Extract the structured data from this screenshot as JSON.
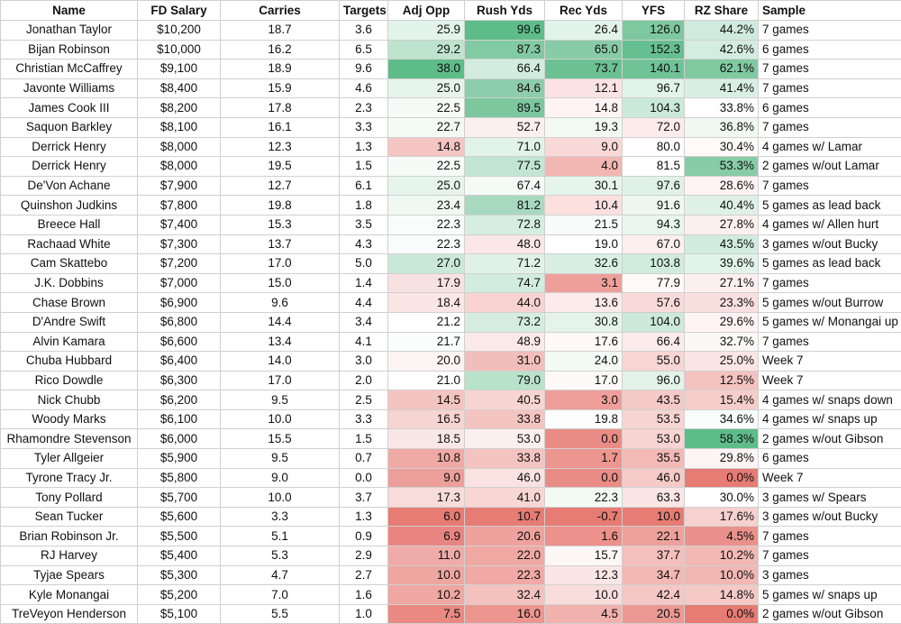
{
  "headers": [
    "Name",
    "FD Salary",
    "Carries",
    "Targets",
    "Adj Opp",
    "Rush Yds",
    "Rec Yds",
    "YFS",
    "RZ Share",
    "Sample"
  ],
  "rows": [
    {
      "name": "Jonathan Taylor",
      "salary": "$10,200",
      "carries": "18.7",
      "targets": "3.6",
      "adj_opp": "25.9",
      "rush_yds": "99.6",
      "rec_yds": "26.4",
      "yfs": "126.0",
      "rz_share": "44.2%",
      "sample": "7 games",
      "colors": [
        "#e2f3ea",
        "#5ebc89",
        "#e2f3ea",
        "#7ec89f",
        "#cfebdd"
      ]
    },
    {
      "name": "Bijan Robinson",
      "salary": "$10,000",
      "carries": "16.2",
      "targets": "6.5",
      "adj_opp": "29.2",
      "rush_yds": "87.3",
      "rec_yds": "65.0",
      "yfs": "152.3",
      "rz_share": "42.6%",
      "sample": "6 games",
      "colors": [
        "#bee4ce",
        "#82caa3",
        "#87cca6",
        "#66bf90",
        "#d4ede1"
      ]
    },
    {
      "name": "Christian McCaffrey",
      "salary": "$9,100",
      "carries": "18.9",
      "targets": "9.6",
      "adj_opp": "38.0",
      "rush_yds": "66.4",
      "rec_yds": "73.7",
      "yfs": "140.1",
      "rz_share": "62.1%",
      "sample": "7 games",
      "colors": [
        "#5ebc89",
        "#d3ece0",
        "#6cc194",
        "#70c397",
        "#80c9a1"
      ]
    },
    {
      "name": "Javonte Williams",
      "salary": "$8,400",
      "carries": "15.9",
      "targets": "4.6",
      "adj_opp": "25.0",
      "rush_yds": "84.6",
      "rec_yds": "12.1",
      "yfs": "96.7",
      "rz_share": "41.4%",
      "sample": "7 games",
      "colors": [
        "#e6f5ec",
        "#8dcdab",
        "#fae3e2",
        "#e2f3ea",
        "#d9efe4"
      ]
    },
    {
      "name": "James Cook III",
      "salary": "$8,200",
      "carries": "17.8",
      "targets": "2.3",
      "adj_opp": "22.5",
      "rush_yds": "89.5",
      "rec_yds": "14.8",
      "yfs": "104.3",
      "rz_share": "33.8%",
      "sample": "6 games",
      "colors": [
        "#f6fbf8",
        "#7dc79f",
        "#fdf4f3",
        "#cbe9d9",
        "#fefefe"
      ]
    },
    {
      "name": "Saquon Barkley",
      "salary": "$8,100",
      "carries": "16.1",
      "targets": "3.3",
      "adj_opp": "22.7",
      "rush_yds": "52.7",
      "rec_yds": "19.3",
      "yfs": "72.0",
      "rz_share": "36.8%",
      "sample": "7 games",
      "colors": [
        "#f4faf6",
        "#fcf0ef",
        "#f2f9f5",
        "#fbeceb",
        "#f0f8f3"
      ]
    },
    {
      "name": "Derrick Henry",
      "salary": "$8,000",
      "carries": "12.3",
      "targets": "1.3",
      "adj_opp": "14.8",
      "rush_yds": "71.0",
      "rec_yds": "9.0",
      "yfs": "80.0",
      "rz_share": "30.4%",
      "sample": "4 games w/ Lamar",
      "colors": [
        "#f4c5c2",
        "#e2f3ea",
        "#f9d9d7",
        "#fffdfd",
        "#fffafa"
      ]
    },
    {
      "name": "Derrick Henry",
      "salary": "$8,000",
      "carries": "19.5",
      "targets": "1.5",
      "adj_opp": "22.5",
      "rush_yds": "77.5",
      "rec_yds": "4.0",
      "yfs": "81.5",
      "rz_share": "53.3%",
      "sample": "2 games w/out Lamar",
      "colors": [
        "#f6fbf8",
        "#c3e6d2",
        "#f2b7b3",
        "#fffefe",
        "#87cca6"
      ]
    },
    {
      "name": "De'Von Achane",
      "salary": "$7,900",
      "carries": "12.7",
      "targets": "6.1",
      "adj_opp": "25.0",
      "rush_yds": "67.4",
      "rec_yds": "30.1",
      "yfs": "97.6",
      "rz_share": "28.6%",
      "sample": "7 games",
      "colors": [
        "#e6f5ec",
        "#f4faf6",
        "#e6f5ec",
        "#e0f2e8",
        "#fdf3f3"
      ]
    },
    {
      "name": "Quinshon Judkins",
      "salary": "$7,800",
      "carries": "19.8",
      "targets": "1.8",
      "adj_opp": "23.4",
      "rush_yds": "81.2",
      "rec_yds": "10.4",
      "yfs": "91.6",
      "rz_share": "40.4%",
      "sample": "5 games as lead back",
      "colors": [
        "#f0f8f3",
        "#a8d9be",
        "#fbe0de",
        "#eef7f2",
        "#dff1e7"
      ]
    },
    {
      "name": "Breece Hall",
      "salary": "$7,400",
      "carries": "15.3",
      "targets": "3.5",
      "adj_opp": "22.3",
      "rush_yds": "72.8",
      "rec_yds": "21.5",
      "yfs": "94.3",
      "rz_share": "27.8%",
      "sample": "4 games w/ Allen hurt",
      "colors": [
        "#f9fcfa",
        "#d6eee2",
        "#f7fbf9",
        "#e9f6ee",
        "#fcf0ef"
      ]
    },
    {
      "name": "Rachaad White",
      "salary": "$7,300",
      "carries": "13.7",
      "targets": "4.3",
      "adj_opp": "22.3",
      "rush_yds": "48.0",
      "rec_yds": "19.0",
      "yfs": "67.0",
      "rz_share": "43.5%",
      "sample": "3 games w/out Bucky",
      "colors": [
        "#f9fcfa",
        "#fbe7e6",
        "#fefefe",
        "#fcefee",
        "#d1ecdf"
      ]
    },
    {
      "name": "Cam Skattebo",
      "salary": "$7,200",
      "carries": "17.0",
      "targets": "5.0",
      "adj_opp": "27.0",
      "rush_yds": "71.2",
      "rec_yds": "32.6",
      "yfs": "103.8",
      "rz_share": "39.6%",
      "sample": "5 games as lead back",
      "colors": [
        "#c9e8d7",
        "#e0f2e8",
        "#d9efe4",
        "#d0ecdd",
        "#e2f3ea"
      ]
    },
    {
      "name": "J.K. Dobbins",
      "salary": "$7,000",
      "carries": "15.0",
      "targets": "1.4",
      "adj_opp": "17.9",
      "rush_yds": "74.7",
      "rec_yds": "3.1",
      "yfs": "77.9",
      "rz_share": "27.1%",
      "sample": "7 games",
      "colors": [
        "#f8e2e1",
        "#d2ece0",
        "#ef9f9a",
        "#fff9f9",
        "#fcf0ef"
      ]
    },
    {
      "name": "Chase Brown",
      "salary": "$6,900",
      "carries": "9.6",
      "targets": "4.4",
      "adj_opp": "18.4",
      "rush_yds": "44.0",
      "rec_yds": "13.6",
      "yfs": "57.6",
      "rz_share": "23.3%",
      "sample": "5 games w/out Burrow",
      "colors": [
        "#f9e6e5",
        "#f8d3d1",
        "#fcebea",
        "#f8dbd9",
        "#f9e0df"
      ]
    },
    {
      "name": "D'Andre Swift",
      "salary": "$6,800",
      "carries": "14.4",
      "targets": "3.4",
      "adj_opp": "21.2",
      "rush_yds": "73.2",
      "rec_yds": "30.8",
      "yfs": "104.0",
      "rz_share": "29.6%",
      "sample": "5 games w/ Monangai up",
      "colors": [
        "#fdfefd",
        "#d5ede1",
        "#e4f4eb",
        "#cce9d9",
        "#fdf3f3"
      ]
    },
    {
      "name": "Alvin Kamara",
      "salary": "$6,600",
      "carries": "13.4",
      "targets": "4.1",
      "adj_opp": "21.7",
      "rush_yds": "48.9",
      "rec_yds": "17.6",
      "yfs": "66.4",
      "rz_share": "32.7%",
      "sample": "7 games",
      "colors": [
        "#fbfdfc",
        "#fbe9e8",
        "#fef8f8",
        "#fbeceb",
        "#fdf8f8"
      ]
    },
    {
      "name": "Chuba Hubbard",
      "salary": "$6,400",
      "carries": "14.0",
      "targets": "3.0",
      "adj_opp": "20.0",
      "rush_yds": "31.0",
      "rec_yds": "24.0",
      "yfs": "55.0",
      "rz_share": "25.0%",
      "sample": "Week 7",
      "colors": [
        "#fcf3f3",
        "#f2bebb",
        "#f3faf6",
        "#f7d6d4",
        "#fbe5e4"
      ]
    },
    {
      "name": "Rico Dowdle",
      "salary": "$6,300",
      "carries": "17.0",
      "targets": "2.0",
      "adj_opp": "21.0",
      "rush_yds": "79.0",
      "rec_yds": "17.0",
      "yfs": "96.0",
      "rz_share": "12.5%",
      "sample": "Week 7",
      "colors": [
        "#fefefe",
        "#b9e2ca",
        "#fef9f9",
        "#e3f3ea",
        "#f4c2bf"
      ]
    },
    {
      "name": "Nick Chubb",
      "salary": "$6,200",
      "carries": "9.5",
      "targets": "2.5",
      "adj_opp": "14.5",
      "rush_yds": "40.5",
      "rec_yds": "3.0",
      "yfs": "43.5",
      "rz_share": "15.4%",
      "sample": "4 games w/ snaps down",
      "colors": [
        "#f4c4c1",
        "#f7d5d3",
        "#ef9e99",
        "#f5c9c6",
        "#f6cdca"
      ]
    },
    {
      "name": "Woody Marks",
      "salary": "$6,100",
      "carries": "10.0",
      "targets": "3.3",
      "adj_opp": "16.5",
      "rush_yds": "33.8",
      "rec_yds": "19.8",
      "yfs": "53.5",
      "rz_share": "34.6%",
      "sample": "4 games w/ snaps up",
      "colors": [
        "#f6d4d2",
        "#f4c4c1",
        "#fcfdfc",
        "#f7d4d2",
        "#f8fcfa"
      ]
    },
    {
      "name": "Rhamondre Stevenson",
      "salary": "$6,000",
      "carries": "15.5",
      "targets": "1.5",
      "adj_opp": "18.5",
      "rush_yds": "53.0",
      "rec_yds": "0.0",
      "yfs": "53.0",
      "rz_share": "58.3%",
      "sample": "2 games w/out Gibson",
      "colors": [
        "#f9e7e6",
        "#fcf0ef",
        "#ea8c86",
        "#f7d3d1",
        "#5ebc89"
      ]
    },
    {
      "name": "Tyler Allgeier",
      "salary": "$5,900",
      "carries": "9.5",
      "targets": "0.7",
      "adj_opp": "10.8",
      "rush_yds": "33.8",
      "rec_yds": "1.7",
      "yfs": "35.5",
      "rz_share": "29.8%",
      "sample": "6 games",
      "colors": [
        "#efaaa6",
        "#f4c4c1",
        "#ed9690",
        "#f3b9b5",
        "#fdf4f4"
      ]
    },
    {
      "name": "Tyrone Tracy Jr.",
      "salary": "$5,800",
      "carries": "9.0",
      "targets": "0.0",
      "adj_opp": "9.0",
      "rush_yds": "46.0",
      "rec_yds": "0.0",
      "yfs": "46.0",
      "rz_share": "0.0%",
      "sample": "Week 7",
      "colors": [
        "#ec9f9a",
        "#fae2e1",
        "#ea8c86",
        "#f5cac7",
        "#e67c73"
      ]
    },
    {
      "name": "Tony Pollard",
      "salary": "$5,700",
      "carries": "10.0",
      "targets": "3.7",
      "adj_opp": "17.3",
      "rush_yds": "41.0",
      "rec_yds": "22.3",
      "yfs": "63.3",
      "rz_share": "30.0%",
      "sample": "3 games w/ Spears",
      "colors": [
        "#f7dcda",
        "#f8d6d4",
        "#f3faf6",
        "#f9e6e5",
        "#fefefe"
      ]
    },
    {
      "name": "Sean Tucker",
      "salary": "$5,600",
      "carries": "3.3",
      "targets": "1.3",
      "adj_opp": "6.0",
      "rush_yds": "10.7",
      "rec_yds": "-0.7",
      "yfs": "10.0",
      "rz_share": "17.6%",
      "sample": "3 games w/out Bucky",
      "colors": [
        "#e67c73",
        "#e67c73",
        "#e67c73",
        "#e67c73",
        "#f6d1cf"
      ]
    },
    {
      "name": "Brian Robinson Jr.",
      "salary": "$5,500",
      "carries": "5.1",
      "targets": "0.9",
      "adj_opp": "6.9",
      "rush_yds": "20.6",
      "rec_yds": "1.6",
      "yfs": "22.1",
      "rz_share": "4.5%",
      "sample": "7 games",
      "colors": [
        "#e98580",
        "#efa29d",
        "#ec918b",
        "#eca19c",
        "#eb918b"
      ]
    },
    {
      "name": "RJ Harvey",
      "salary": "$5,400",
      "carries": "5.3",
      "targets": "2.9",
      "adj_opp": "11.0",
      "rush_yds": "22.0",
      "rec_yds": "15.7",
      "yfs": "37.7",
      "rz_share": "10.2%",
      "sample": "7 games",
      "colors": [
        "#efaba7",
        "#f0a8a3",
        "#fdf6f6",
        "#f4bfbc",
        "#f2b8b4"
      ]
    },
    {
      "name": "Tyjae Spears",
      "salary": "$5,300",
      "carries": "4.7",
      "targets": "2.7",
      "adj_opp": "10.0",
      "rush_yds": "22.3",
      "rec_yds": "12.3",
      "yfs": "34.7",
      "rz_share": "10.0%",
      "sample": "3 games",
      "colors": [
        "#eea6a1",
        "#f0a9a4",
        "#fae6e5",
        "#f3b8b4",
        "#f2b7b3"
      ]
    },
    {
      "name": "Kyle Monangai",
      "salary": "$5,200",
      "carries": "7.0",
      "targets": "1.6",
      "adj_opp": "10.2",
      "rush_yds": "32.4",
      "rec_yds": "10.0",
      "yfs": "42.4",
      "rz_share": "14.8%",
      "sample": "5 games w/ snaps up",
      "colors": [
        "#eea7a2",
        "#f3c1be",
        "#f9dddb",
        "#f5c7c4",
        "#f5c9c6"
      ]
    },
    {
      "name": "TreVeyon Henderson",
      "salary": "$5,100",
      "carries": "5.5",
      "targets": "1.0",
      "adj_opp": "7.5",
      "rush_yds": "16.0",
      "rec_yds": "4.5",
      "yfs": "20.5",
      "rz_share": "0.0%",
      "sample": "2 games w/out Gibson",
      "colors": [
        "#e98982",
        "#ed958f",
        "#f1b1ad",
        "#eb9892",
        "#e67c73"
      ]
    }
  ]
}
